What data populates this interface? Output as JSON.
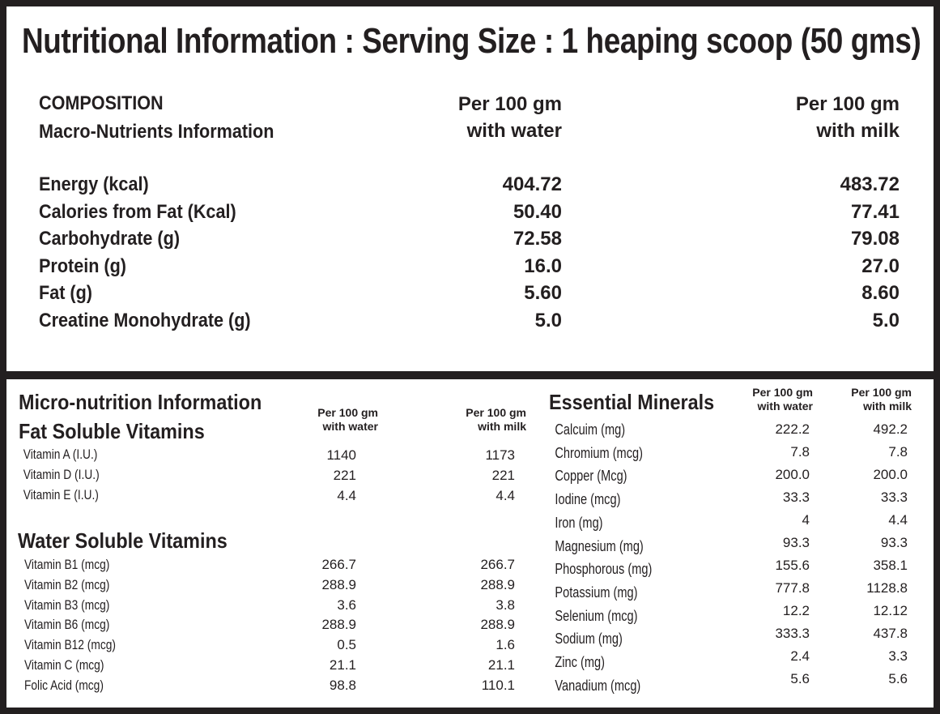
{
  "title": "Nutritional Information : Serving Size : 1 heaping scoop (50 gms)",
  "macro": {
    "heading1": "COMPOSITION",
    "heading2": "Macro-Nutrients Information",
    "col_water": [
      "Per 100 gm",
      "with water"
    ],
    "col_milk": [
      "Per 100 gm",
      "with milk"
    ],
    "rows": [
      {
        "label": "Energy (kcal)",
        "water": "404.72",
        "milk": "483.72"
      },
      {
        "label": "Calories from Fat (Kcal)",
        "water": "50.40",
        "milk": "77.41"
      },
      {
        "label": "Carbohydrate  (g)",
        "water": "72.58",
        "milk": "79.08"
      },
      {
        "label": "Protein (g)",
        "water": "16.0",
        "milk": "27.0"
      },
      {
        "label": "Fat (g)",
        "water": "5.60",
        "milk": "8.60"
      },
      {
        "label": "Creatine Monohydrate (g)",
        "water": "5.0",
        "milk": "5.0"
      }
    ]
  },
  "micro": {
    "heading": "Micro-nutrition Information",
    "col_water": [
      "Per 100 gm",
      "with water"
    ],
    "col_milk": [
      "Per 100 gm",
      "with milk"
    ],
    "fat_soluble": {
      "heading": "Fat Soluble Vitamins",
      "rows": [
        {
          "label": "Vitamin A (I.U.)",
          "water": "1140",
          "milk": "1173"
        },
        {
          "label": "Vitamin D (I.U.)",
          "water": "221",
          "milk": "221"
        },
        {
          "label": "Vitamin E (I.U.)",
          "water": "4.4",
          "milk": "4.4"
        }
      ]
    },
    "water_soluble": {
      "heading": "Water Soluble Vitamins",
      "rows": [
        {
          "label": "Vitamin B1 (mcg)",
          "water": "266.7",
          "milk": "266.7"
        },
        {
          "label": "Vitamin B2 (mcg)",
          "water": "288.9",
          "milk": "288.9"
        },
        {
          "label": "Vitamin B3 (mcg)",
          "water": "3.6",
          "milk": "3.8"
        },
        {
          "label": "Vitamin B6 (mcg)",
          "water": "288.9",
          "milk": "288.9"
        },
        {
          "label": "Vitamin B12 (mcg)",
          "water": "0.5",
          "milk": "1.6"
        },
        {
          "label": "Vitamin C (mcg)",
          "water": "21.1",
          "milk": "21.1"
        },
        {
          "label": "Folic Acid (mcg)",
          "water": "98.8",
          "milk": "110.1"
        }
      ]
    }
  },
  "minerals": {
    "heading": "Essential Minerals",
    "col_water": [
      "Per 100 gm",
      "with water"
    ],
    "col_milk": [
      "Per 100 gm",
      "with milk"
    ],
    "rows": [
      {
        "label": "Calcuim (mg)",
        "water": "222.2",
        "milk": "492.2"
      },
      {
        "label": "Chromium (mcg)",
        "water": "7.8",
        "milk": "7.8"
      },
      {
        "label": "Copper (Mcg)",
        "water": "200.0",
        "milk": "200.0"
      },
      {
        "label": "Iodine (mcg)",
        "water": "33.3",
        "milk": "33.3"
      },
      {
        "label": "Iron (mg)",
        "water": "4",
        "milk": "4.4"
      },
      {
        "label": "Magnesium (mg)",
        "water": "93.3",
        "milk": "93.3"
      },
      {
        "label": "Phosphorous (mg)",
        "water": "155.6",
        "milk": "358.1"
      },
      {
        "label": "Potassium (mg)",
        "water": "777.8",
        "milk": "1128.8"
      },
      {
        "label": "Selenium (mcg)",
        "water": "12.2",
        "milk": "12.12"
      },
      {
        "label": "Sodium (mg)",
        "water": "333.3",
        "milk": "437.8"
      },
      {
        "label": "Zinc (mg)",
        "water": "2.4",
        "milk": "3.3"
      },
      {
        "label": "Vanadium (mcg)",
        "water": "5.6",
        "milk": "5.6"
      }
    ]
  }
}
